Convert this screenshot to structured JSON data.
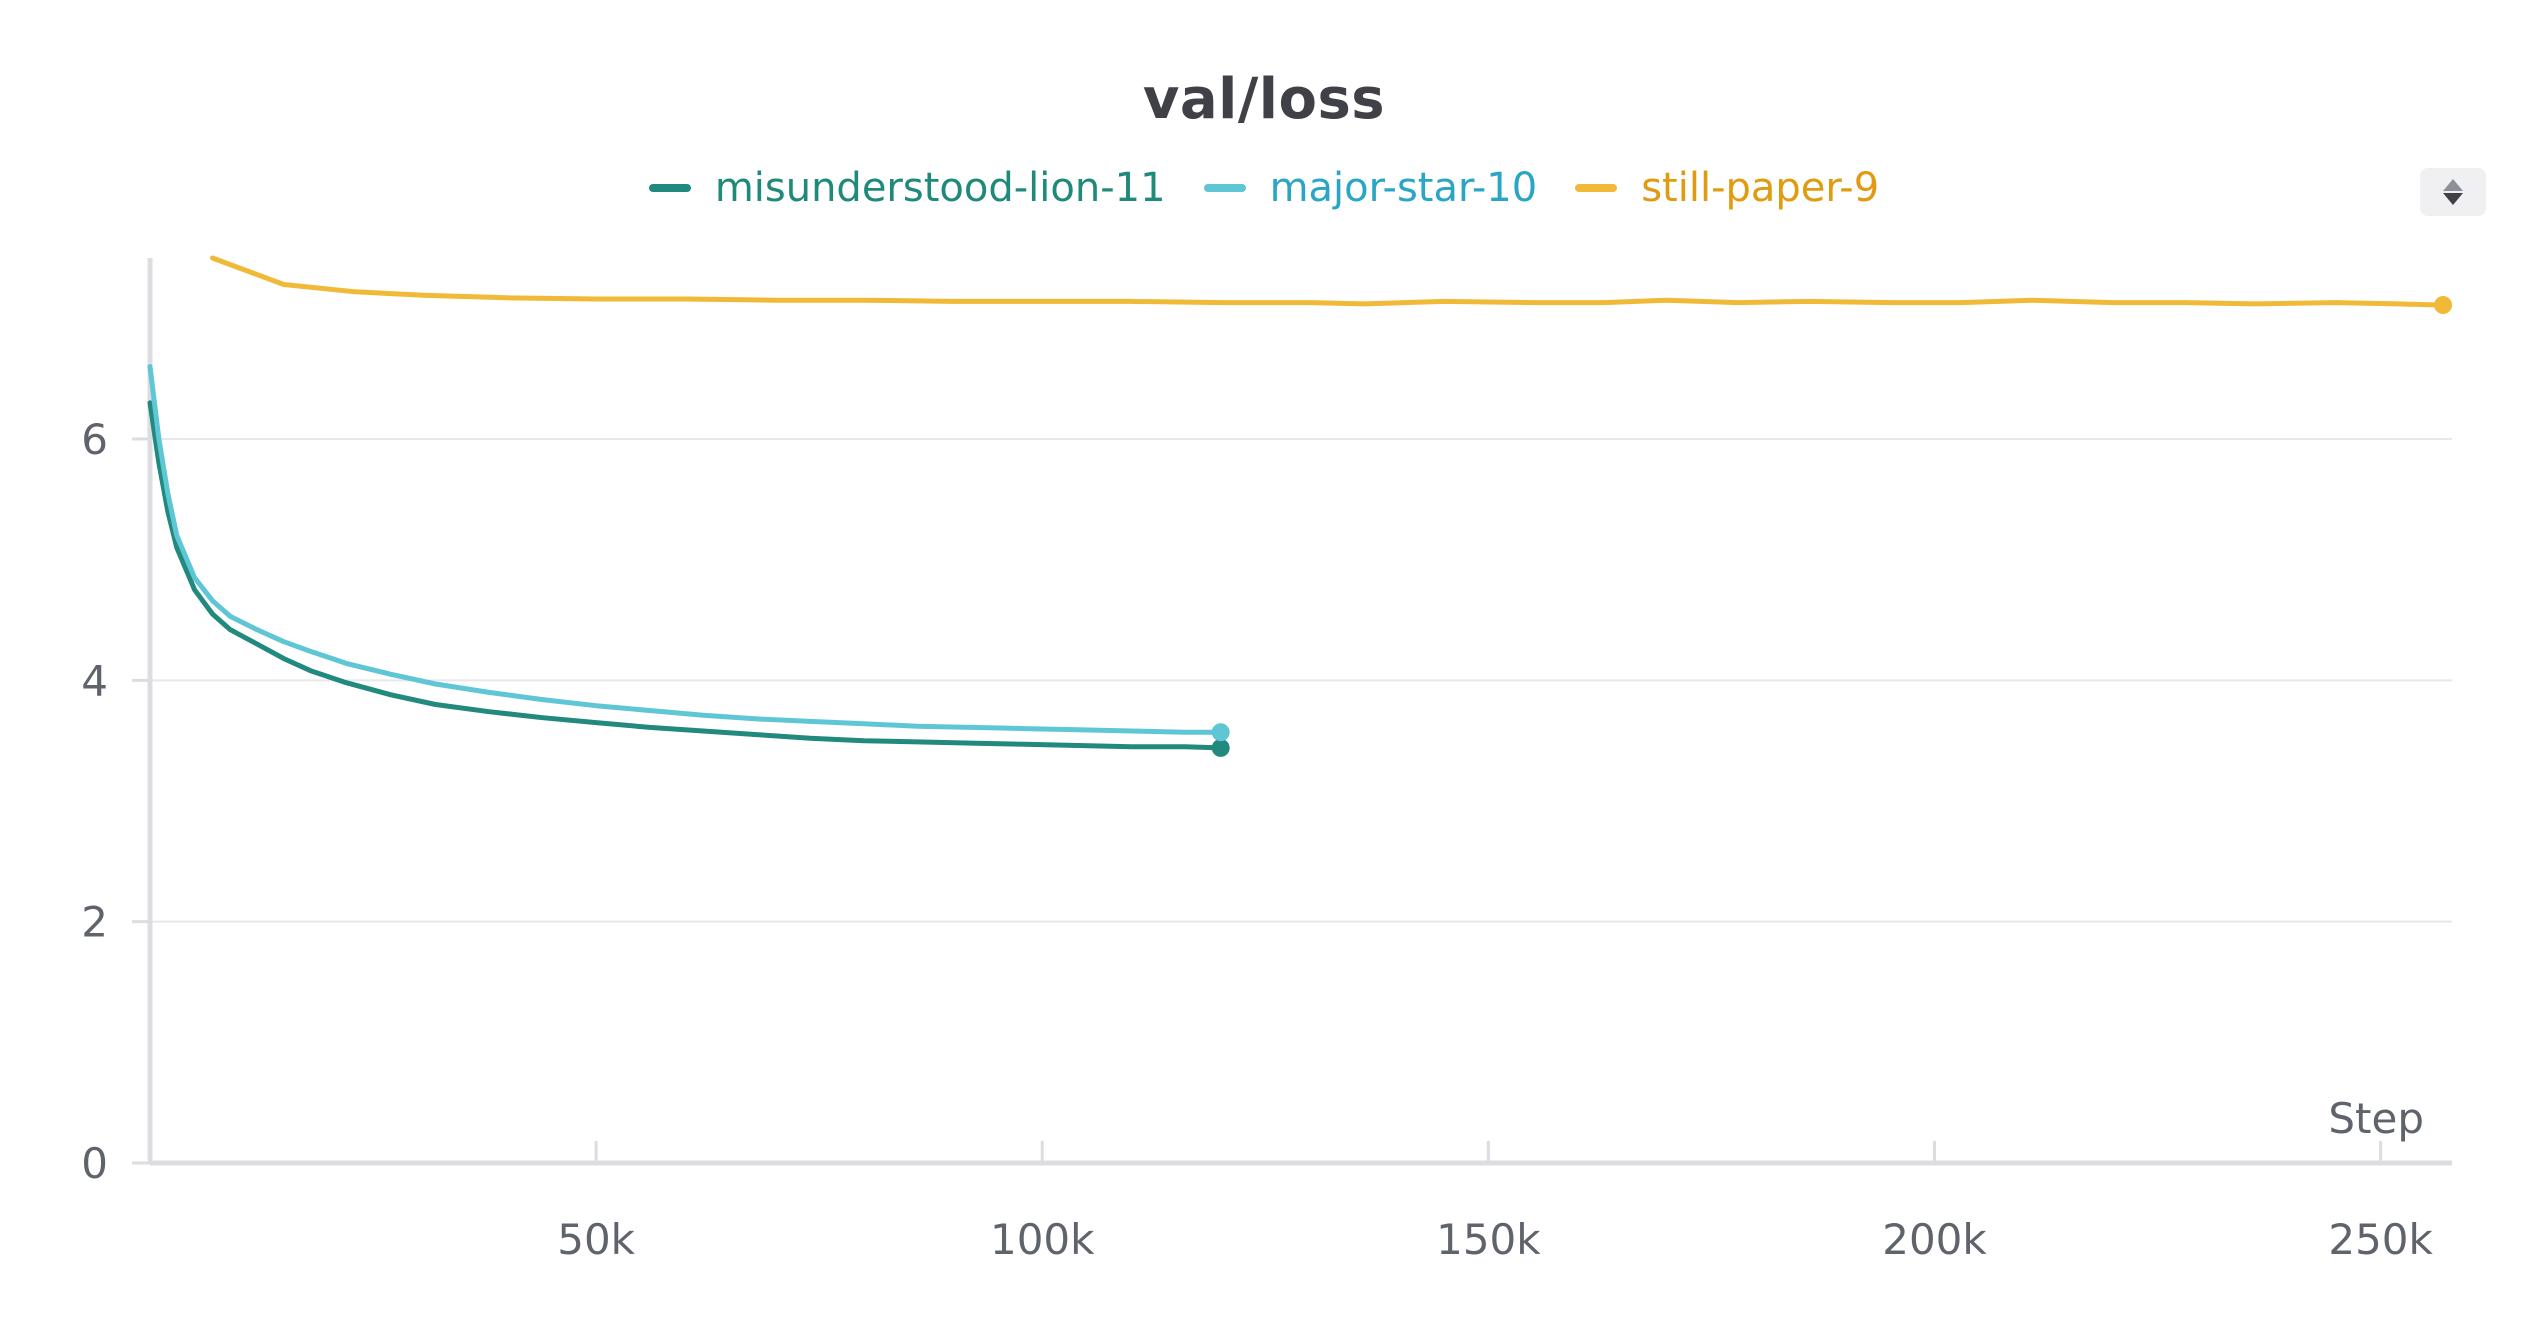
{
  "chart_data": {
    "type": "line",
    "title": "val/loss",
    "xlabel": "Step",
    "ylabel": "",
    "xlim": [
      0,
      258000
    ],
    "ylim": [
      0,
      7.5
    ],
    "xticks": [
      50000,
      100000,
      150000,
      200000,
      250000
    ],
    "xtick_labels": [
      "50k",
      "100k",
      "150k",
      "200k",
      "250k"
    ],
    "yticks": [
      0,
      2,
      4,
      6
    ],
    "ytick_labels": [
      "0",
      "2",
      "4",
      "6"
    ],
    "grid": true,
    "legend_position": "top-center",
    "series": [
      {
        "name": "misunderstood-lion-11",
        "color": "#21897e",
        "label_color": "#1f8a7a",
        "x": [
          0,
          1000,
          2000,
          3000,
          5000,
          7000,
          9000,
          12000,
          15000,
          18000,
          22000,
          27000,
          32000,
          38000,
          44000,
          50000,
          56000,
          62000,
          68000,
          74000,
          80000,
          86000,
          92000,
          98000,
          104000,
          110000,
          116000,
          120000
        ],
        "y": [
          6.3,
          5.8,
          5.4,
          5.1,
          4.75,
          4.55,
          4.42,
          4.3,
          4.18,
          4.08,
          3.98,
          3.88,
          3.8,
          3.74,
          3.69,
          3.65,
          3.61,
          3.58,
          3.55,
          3.52,
          3.5,
          3.49,
          3.48,
          3.47,
          3.46,
          3.45,
          3.45,
          3.44
        ]
      },
      {
        "name": "major-star-10",
        "color": "#5fc6d6",
        "label_color": "#2aa5c5",
        "x": [
          0,
          1000,
          2000,
          3000,
          5000,
          7000,
          9000,
          12000,
          15000,
          18000,
          22000,
          27000,
          32000,
          38000,
          44000,
          50000,
          56000,
          62000,
          68000,
          74000,
          80000,
          86000,
          92000,
          98000,
          104000,
          110000,
          116000,
          120000
        ],
        "y": [
          6.6,
          6.0,
          5.55,
          5.2,
          4.85,
          4.66,
          4.53,
          4.42,
          4.32,
          4.24,
          4.14,
          4.05,
          3.97,
          3.9,
          3.84,
          3.79,
          3.75,
          3.71,
          3.68,
          3.66,
          3.64,
          3.62,
          3.61,
          3.6,
          3.59,
          3.58,
          3.57,
          3.57
        ]
      },
      {
        "name": "still-paper-9",
        "color": "#f0b938",
        "label_color": "#e09b10",
        "x": [
          7000,
          15000,
          23000,
          31000,
          40000,
          50000,
          60000,
          70000,
          80000,
          90000,
          100000,
          110000,
          120000,
          130000,
          136000,
          145000,
          155000,
          163000,
          170000,
          178000,
          186000,
          195000,
          203000,
          211000,
          220000,
          228000,
          236000,
          245000,
          252000,
          257000
        ],
        "y": [
          7.5,
          7.28,
          7.22,
          7.19,
          7.17,
          7.16,
          7.16,
          7.15,
          7.15,
          7.14,
          7.14,
          7.14,
          7.13,
          7.13,
          7.12,
          7.14,
          7.13,
          7.13,
          7.15,
          7.13,
          7.14,
          7.13,
          7.13,
          7.15,
          7.13,
          7.13,
          7.12,
          7.13,
          7.12,
          7.11
        ]
      }
    ]
  }
}
